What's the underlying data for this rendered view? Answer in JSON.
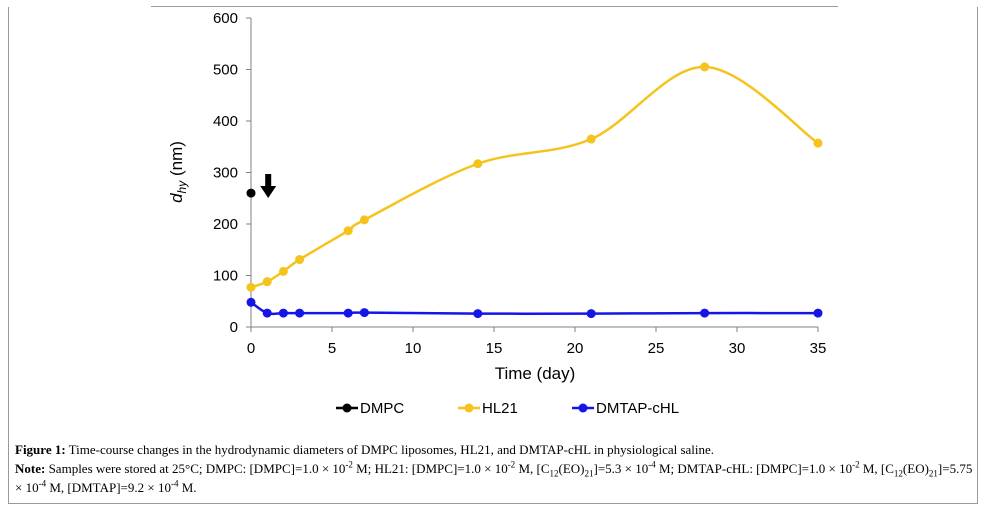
{
  "chart_data": {
    "type": "line",
    "xlabel": "Time (day)",
    "ylabel_main": "d",
    "ylabel_sub": "hy",
    "ylabel_unit": " (nm)",
    "xlim": [
      0,
      35
    ],
    "ylim": [
      0,
      600
    ],
    "xticks": [
      0,
      5,
      10,
      15,
      20,
      25,
      30,
      35
    ],
    "yticks": [
      0,
      100,
      200,
      300,
      400,
      500,
      600
    ],
    "grid": false,
    "legend_position": "bottom",
    "annotation": "downward arrow at day 1",
    "series": [
      {
        "name": "DMPC",
        "color": "#000000",
        "smooth": false,
        "x": [
          0
        ],
        "y": [
          260
        ]
      },
      {
        "name": "HL21",
        "color": "#f5c31c",
        "smooth": true,
        "x": [
          0,
          1,
          2,
          3,
          6,
          7,
          14,
          21,
          28,
          35
        ],
        "y": [
          77,
          88,
          108,
          131,
          187,
          208,
          317,
          365,
          505,
          357
        ]
      },
      {
        "name": "DMTAP-cHL",
        "color": "#1515e6",
        "smooth": true,
        "x": [
          0,
          1,
          2,
          3,
          6,
          7,
          14,
          21,
          28,
          35
        ],
        "y": [
          48,
          27,
          27,
          27,
          27,
          28,
          26,
          26,
          27,
          27
        ]
      }
    ]
  },
  "caption": {
    "figure_label": "Figure 1:",
    "figure_text": " Time-course changes in the hydrodynamic diameters of DMPC liposomes, HL21, and DMTAP-cHL in physiological saline.",
    "note_label": "Note:",
    "note_part1": " Samples were stored at 25°C; DMPC: [DMPC]=1.0 × 10",
    "note_exp1": "-2",
    "note_part2": " M; HL21: [DMPC]=1.0 × 10",
    "note_exp2": "-2",
    "note_part3": " M, [C",
    "note_sub1": "12",
    "note_part4": "(EO)",
    "note_sub2": "21",
    "note_part5": "]=5.3 × 10",
    "note_exp3": "-4",
    "note_part6": " M; DMTAP-cHL: [DMPC]=1.0 × 10",
    "note_exp4": "-2",
    "note_part7": " M, [C",
    "note_sub3": "12",
    "note_part8": "(EO)",
    "note_sub4": "21",
    "note_part9": "]=5.75 × 10",
    "note_exp5": "-4",
    "note_part10": " M, [DMTAP]=9.2 × 10",
    "note_exp6": "-4",
    "note_part11": " M."
  }
}
